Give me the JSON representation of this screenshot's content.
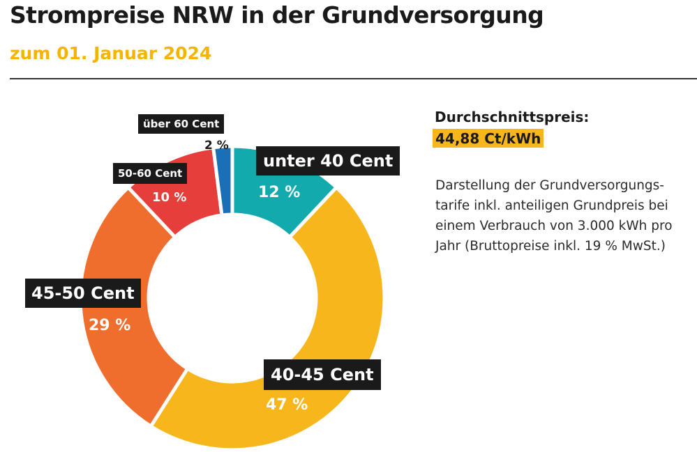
{
  "header": {
    "title": "Strompreise NRW in der Grundversorgung",
    "subtitle": "zum 01. Januar 2024"
  },
  "info": {
    "avg_label": "Durchschnittspreis:",
    "avg_value": "44,88 Ct/kWh",
    "description_lines": [
      "Darstellung der Grundversorgungs-",
      "tarife inkl. anteiligen Grundpreis bei",
      "einem Verbrauch von 3.000 kWh pro",
      "Jahr (Bruttopreise inkl. 19 % MwSt.)"
    ]
  },
  "chart_data": {
    "type": "pie",
    "style": "donut",
    "legend": "none",
    "slices": [
      {
        "label": "unter 40 Cent",
        "value": 12,
        "display": "12 %",
        "color": "#12aaad"
      },
      {
        "label": "40-45 Cent",
        "value": 47,
        "display": "47 %",
        "color": "#f7b71c"
      },
      {
        "label": "45-50 Cent",
        "value": 29,
        "display": "29 %",
        "color": "#ef6d2d"
      },
      {
        "label": "50-60 Cent",
        "value": 10,
        "display": "10 %",
        "color": "#e63e3a"
      },
      {
        "label": "über 60 Cent",
        "value": 2,
        "display": "2 %",
        "color": "#1a6fb5"
      }
    ]
  }
}
